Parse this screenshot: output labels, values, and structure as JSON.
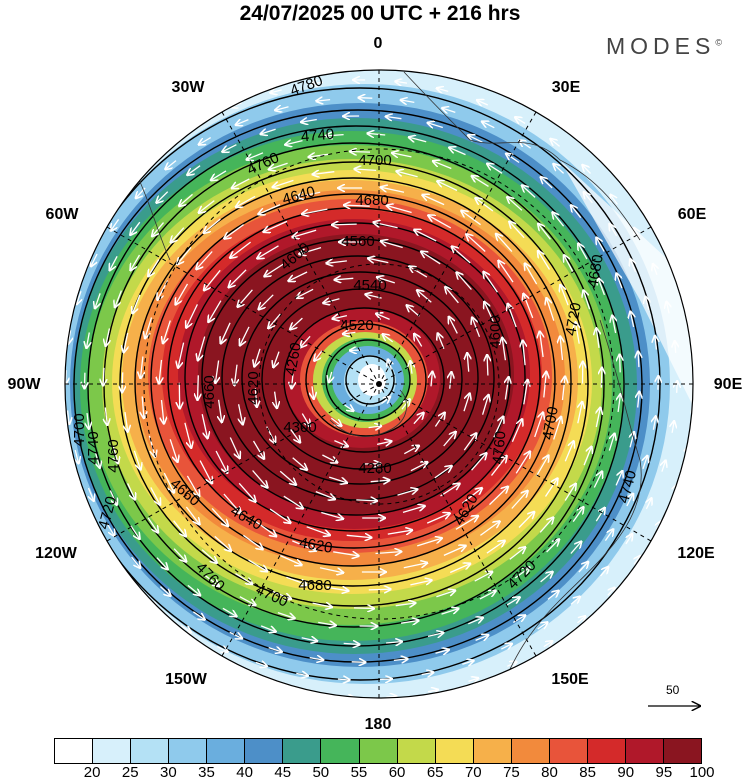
{
  "title": "24/07/2025  00 UTC  + 216 hrs",
  "brand": "MODES",
  "brand_mark": "©",
  "longitude_labels": {
    "top": "0",
    "t30e": "30E",
    "t60e": "60E",
    "t90e": "90E",
    "t120e": "120E",
    "t150e": "150E",
    "bottom": "180",
    "t150w": "150W",
    "t120w": "120W",
    "t90w": "90W",
    "t60w": "60W",
    "t30w": "30W"
  },
  "contour_labels": [
    "4780",
    "4760",
    "4740",
    "4700",
    "4680",
    "4640",
    "4600",
    "4560",
    "4540",
    "4520",
    "4260",
    "4300",
    "4280",
    "4620",
    "4660",
    "4700",
    "4720",
    "4740",
    "4760",
    "4680",
    "4700",
    "4720",
    "4740",
    "4760",
    "4640",
    "4620",
    "4660",
    "4680",
    "4600",
    "4620",
    "4700",
    "4720",
    "4760"
  ],
  "vector_scale": "50",
  "colorbar": {
    "ticks": [
      "20",
      "25",
      "30",
      "35",
      "40",
      "45",
      "50",
      "55",
      "60",
      "65",
      "70",
      "75",
      "80",
      "85",
      "90",
      "95",
      "100"
    ],
    "colors": [
      "#ffffff",
      "#d7f0fb",
      "#b4e1f5",
      "#8fcaec",
      "#6aaede",
      "#4d8fc8",
      "#3a9c8c",
      "#45b55a",
      "#7cc84a",
      "#c3d94a",
      "#f4dc55",
      "#f6b04a",
      "#f28a3c",
      "#e8543a",
      "#d42a2a",
      "#b0182a",
      "#8a1520"
    ]
  }
}
